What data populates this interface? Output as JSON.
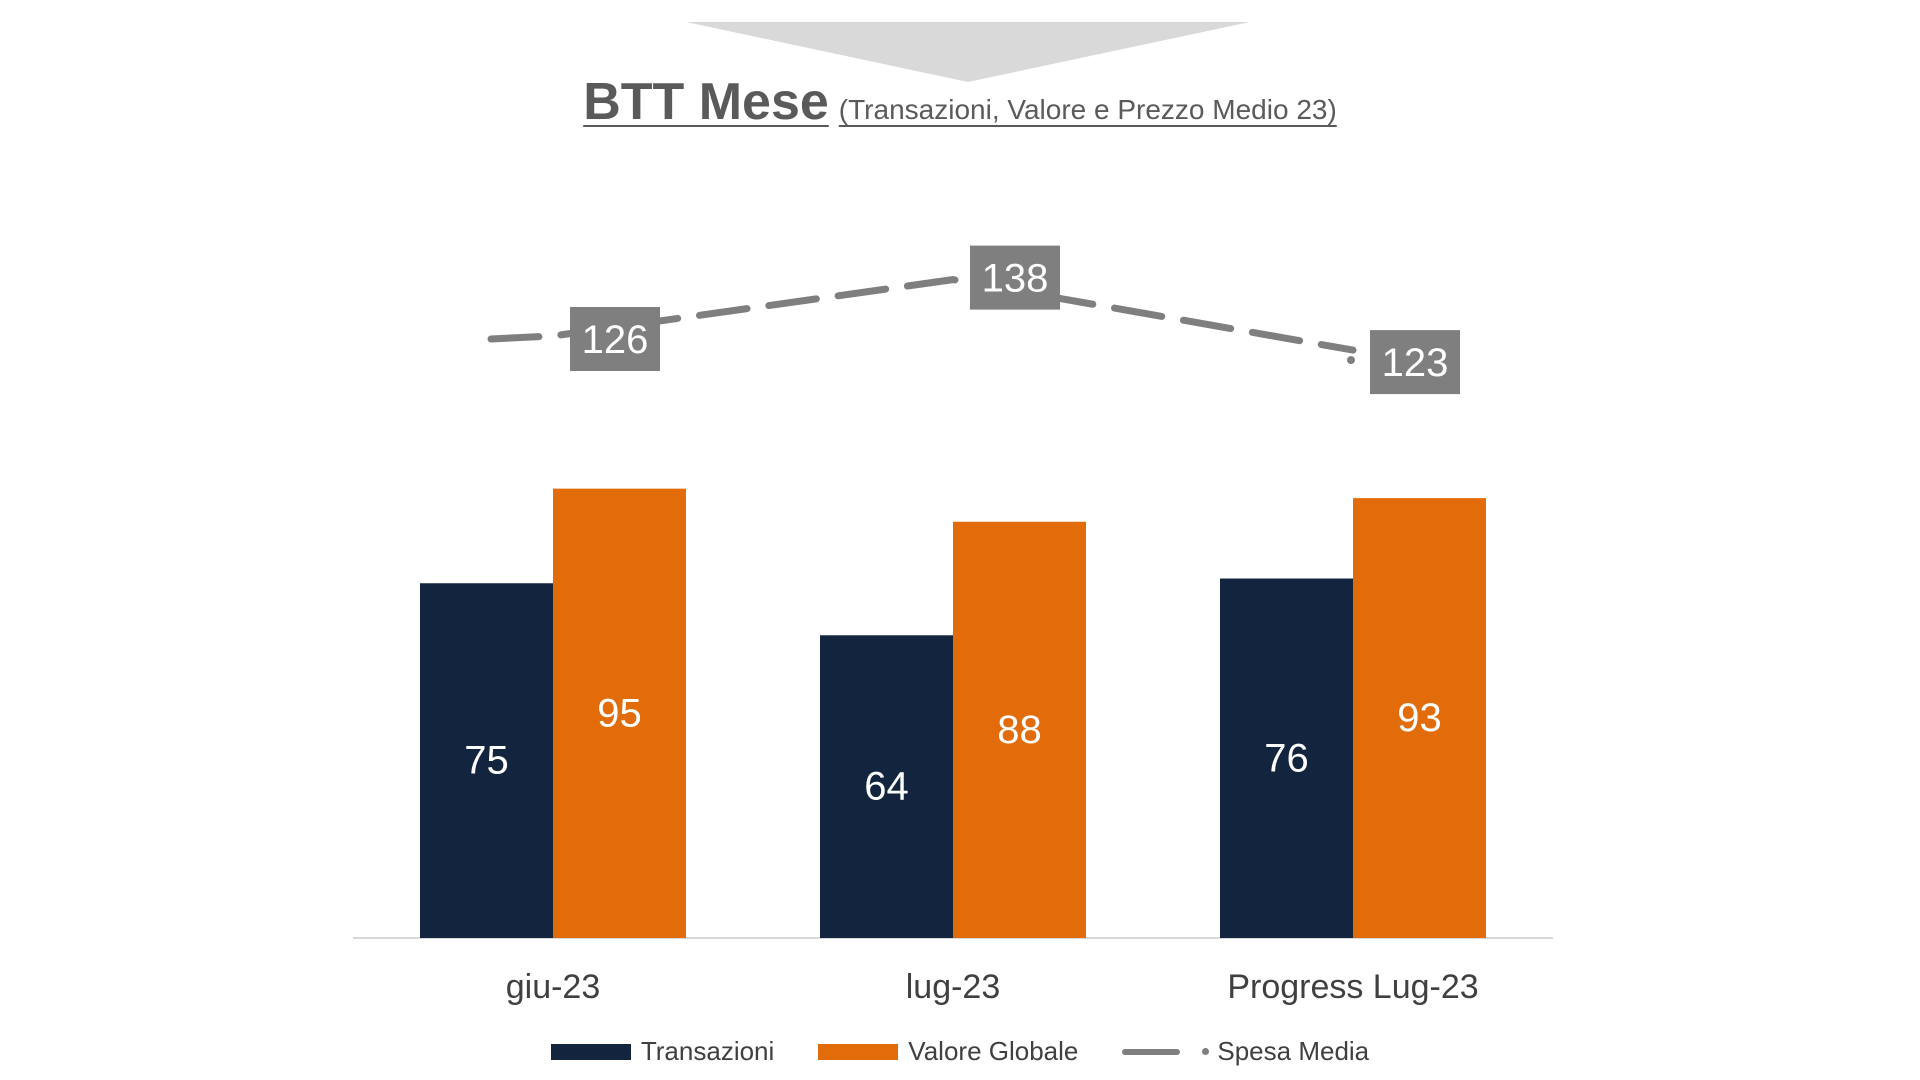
{
  "title": {
    "main": "BTT Mese",
    "subtitle": "(Transazioni, Valore e Prezzo Medio 23)"
  },
  "colors": {
    "transazioni": "#13243f",
    "valore_globale": "#e36c0a",
    "spesa_media": "#7f7f7f",
    "header_arrow": "#d9d9d9",
    "axis": "#d9d9d9"
  },
  "legend": {
    "transazioni": "Transazioni",
    "valore_globale": "Valore Globale",
    "spesa_media": "Spesa Media"
  },
  "chart_data": {
    "type": "bar",
    "categories": [
      "giu-23",
      "lug-23",
      "Progress Lug-23"
    ],
    "series": [
      {
        "name": "Transazioni",
        "type": "bar",
        "values": [
          75,
          64,
          76
        ]
      },
      {
        "name": "Valore Globale",
        "type": "bar",
        "values": [
          95,
          88,
          93
        ]
      },
      {
        "name": "Spesa Media",
        "type": "line",
        "style": "dashed",
        "values": [
          126,
          138,
          123
        ]
      }
    ],
    "title": "BTT Mese",
    "subtitle": "(Transazioni, Valore e Prezzo Medio 23)",
    "grid": false,
    "legend_position": "bottom"
  }
}
